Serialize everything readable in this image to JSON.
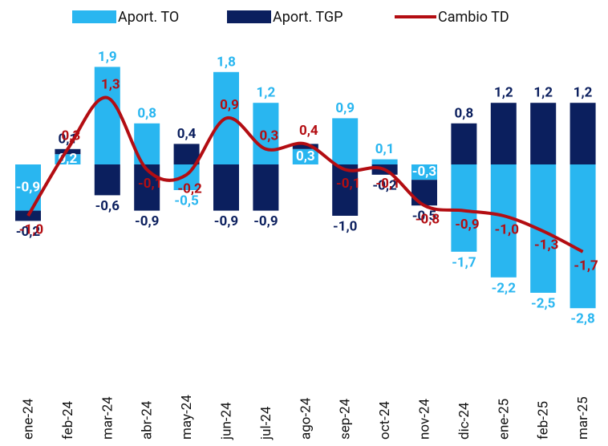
{
  "chart_data": {
    "type": "bar-line",
    "categories": [
      "ene-24",
      "feb-24",
      "mar-24",
      "abr-24",
      "may-24",
      "jun-24",
      "jul-24",
      "ago-24",
      "sep-24",
      "oct-24",
      "nov-24",
      "dic-24",
      "ene-25",
      "feb-25",
      "mar-25"
    ],
    "series": [
      {
        "name": "Aport. TO",
        "kind": "bar",
        "color": "#29b6f0",
        "values": [
          -0.9,
          0.2,
          1.9,
          0.8,
          -0.5,
          1.8,
          1.2,
          0.3,
          0.9,
          0.1,
          -0.3,
          -1.7,
          -2.2,
          -2.5,
          -2.8
        ],
        "value_labels": [
          "-0,9",
          "0,2",
          "1,9",
          "0,8",
          "-0,5",
          "1,8",
          "1,2",
          "0,3",
          "0,9",
          "0,1",
          "-0,3",
          "-1,7",
          "-2,2",
          "-2,5",
          "-2,8"
        ]
      },
      {
        "name": "Aport. TGP",
        "kind": "bar",
        "color": "#0b1f5e",
        "values": [
          -0.2,
          0.1,
          -0.6,
          -0.9,
          0.4,
          -0.9,
          -0.9,
          0.1,
          -1.0,
          -0.2,
          -0.5,
          0.8,
          1.2,
          1.2,
          1.2
        ],
        "value_labels": [
          "-0,2",
          "0,1",
          "-0,6",
          "-0,9",
          "0,4",
          "-0,9",
          "-0,9",
          null,
          "-1,0",
          "-0,2",
          "-0,5",
          "0,8",
          "1,2",
          "1,2",
          "1,2"
        ]
      },
      {
        "name": "Cambio TD",
        "kind": "line",
        "color": "#b30d12",
        "values": [
          -1.0,
          0.3,
          1.3,
          -0.1,
          -0.2,
          0.9,
          0.3,
          0.4,
          -0.1,
          -0.1,
          -0.8,
          -0.9,
          -1.0,
          -1.3,
          -1.7
        ],
        "value_labels": [
          "-1,0",
          "0,3",
          "1,3",
          "-0,1",
          "-0,2",
          "0,9",
          "0,3",
          "0,4",
          "-0,1",
          "-0,1",
          "-0,8",
          "-0,9",
          "-1,0",
          "-1,3",
          "-1,7"
        ]
      }
    ]
  }
}
